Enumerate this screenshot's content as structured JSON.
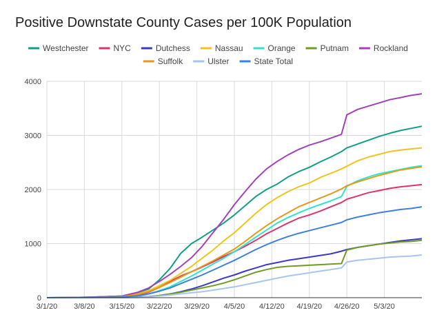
{
  "chart_data": {
    "type": "line",
    "title": "Positive Downstate County Cases per 100K Population",
    "xlabel": "",
    "ylabel": "",
    "ylim": [
      0,
      4000
    ],
    "y_ticks": [
      "0",
      "1000",
      "2000",
      "3000",
      "4000"
    ],
    "x_tick_labels": [
      "3/1/20",
      "3/8/20",
      "3/15/20",
      "3/22/20",
      "3/29/20",
      "4/5/20",
      "4/12/20",
      "4/19/20",
      "4/26/20",
      "5/3/20"
    ],
    "x_tick_days": [
      0,
      7,
      14,
      21,
      28,
      35,
      42,
      49,
      56,
      63
    ],
    "x_range_days": [
      0,
      70
    ],
    "grid": "vertical and horizontal",
    "legend_position": "top",
    "days": [
      0,
      4,
      7,
      10,
      14,
      17,
      19,
      21,
      23,
      25,
      27,
      29,
      31,
      33,
      35,
      37,
      39,
      41,
      43,
      45,
      47,
      49,
      51,
      53,
      55,
      56,
      58,
      60,
      62,
      64,
      66,
      68,
      70
    ],
    "series": [
      {
        "name": "Westchester",
        "color": "#109d87",
        "values": [
          0,
          2,
          8,
          15,
          30,
          95,
          160,
          330,
          540,
          820,
          1000,
          1120,
          1250,
          1380,
          1530,
          1700,
          1870,
          2000,
          2100,
          2230,
          2330,
          2410,
          2510,
          2600,
          2700,
          2770,
          2840,
          2910,
          2980,
          3040,
          3090,
          3130,
          3170
        ]
      },
      {
        "name": "NYC",
        "color": "#e0306e",
        "values": [
          0,
          1,
          3,
          6,
          15,
          45,
          100,
          190,
          300,
          400,
          480,
          570,
          660,
          760,
          850,
          950,
          1060,
          1180,
          1280,
          1380,
          1470,
          1530,
          1600,
          1680,
          1760,
          1820,
          1880,
          1940,
          1980,
          2020,
          2050,
          2070,
          2090
        ]
      },
      {
        "name": "Dutchess",
        "color": "#3b38c4",
        "values": [
          0,
          0,
          1,
          2,
          4,
          10,
          20,
          40,
          70,
          110,
          160,
          220,
          290,
          360,
          420,
          490,
          550,
          610,
          650,
          690,
          720,
          750,
          780,
          810,
          860,
          890,
          930,
          960,
          990,
          1020,
          1050,
          1070,
          1090
        ]
      },
      {
        "name": "Nassau",
        "color": "#f0c419",
        "values": [
          0,
          1,
          4,
          10,
          30,
          70,
          130,
          220,
          320,
          450,
          580,
          730,
          880,
          1050,
          1200,
          1380,
          1560,
          1720,
          1850,
          1960,
          2050,
          2120,
          2220,
          2300,
          2380,
          2430,
          2530,
          2600,
          2650,
          2700,
          2730,
          2750,
          2770
        ]
      },
      {
        "name": "Orange",
        "color": "#2ee6c5",
        "values": [
          0,
          0,
          1,
          3,
          8,
          30,
          70,
          130,
          200,
          300,
          400,
          510,
          620,
          730,
          850,
          980,
          1120,
          1250,
          1380,
          1480,
          1570,
          1650,
          1720,
          1790,
          1870,
          2060,
          2160,
          2230,
          2290,
          2330,
          2370,
          2410,
          2440
        ]
      },
      {
        "name": "Putnam",
        "color": "#6f9b24",
        "values": [
          0,
          0,
          0,
          1,
          2,
          5,
          15,
          40,
          70,
          100,
          140,
          180,
          220,
          270,
          330,
          400,
          470,
          520,
          560,
          580,
          590,
          600,
          610,
          620,
          630,
          880,
          930,
          960,
          990,
          1010,
          1030,
          1040,
          1060
        ]
      },
      {
        "name": "Rockland",
        "color": "#a23fbb",
        "values": [
          0,
          3,
          8,
          15,
          30,
          100,
          180,
          300,
          430,
          580,
          740,
          950,
          1200,
          1450,
          1720,
          1960,
          2190,
          2380,
          2520,
          2640,
          2740,
          2820,
          2880,
          2950,
          3020,
          3380,
          3480,
          3540,
          3600,
          3660,
          3700,
          3740,
          3770
        ]
      },
      {
        "name": "Suffolk",
        "color": "#e39a1c",
        "values": [
          0,
          1,
          3,
          8,
          20,
          60,
          110,
          190,
          280,
          380,
          480,
          580,
          680,
          790,
          900,
          1040,
          1190,
          1330,
          1460,
          1570,
          1680,
          1760,
          1840,
          1920,
          2010,
          2070,
          2140,
          2200,
          2260,
          2310,
          2360,
          2390,
          2420
        ]
      },
      {
        "name": "Ulster",
        "color": "#a8c4f0",
        "values": [
          0,
          0,
          0,
          1,
          2,
          5,
          15,
          30,
          50,
          70,
          90,
          110,
          140,
          170,
          200,
          240,
          280,
          320,
          360,
          400,
          430,
          460,
          490,
          520,
          550,
          660,
          690,
          710,
          730,
          750,
          760,
          770,
          790
        ]
      },
      {
        "name": "State Total",
        "color": "#3c7fe0",
        "values": [
          0,
          1,
          3,
          6,
          12,
          35,
          70,
          120,
          180,
          260,
          340,
          420,
          510,
          600,
          690,
          790,
          890,
          980,
          1060,
          1130,
          1190,
          1240,
          1290,
          1340,
          1390,
          1440,
          1490,
          1530,
          1570,
          1600,
          1630,
          1650,
          1680
        ]
      }
    ]
  }
}
